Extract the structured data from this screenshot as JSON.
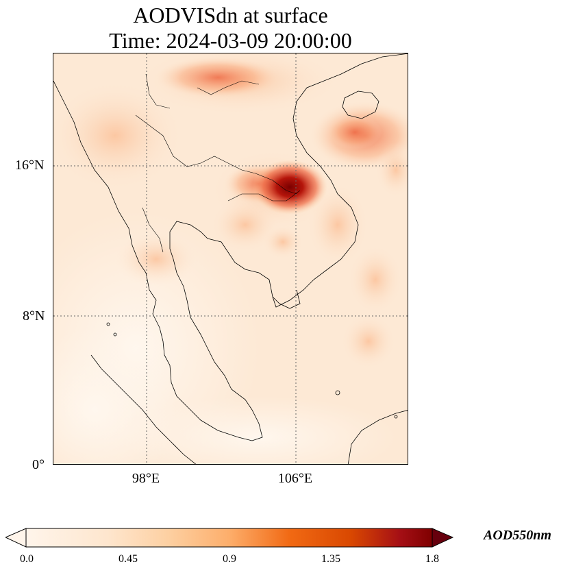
{
  "title": {
    "line1": "AODVISdn at surface",
    "line2": "Time: 2024-03-09 20:00:00"
  },
  "map": {
    "lat_labels": [
      "16°N",
      "8°N",
      "0°"
    ],
    "lon_labels": [
      "98°E",
      "106°E"
    ],
    "gridlines": "dotted",
    "hotspot_color": "#8b0000",
    "background_color": "#fde9d5"
  },
  "colorbar": {
    "label": "AOD550nm",
    "ticks": [
      "0.0",
      "0.45",
      "0.9",
      "1.35",
      "1.8"
    ],
    "colormap": [
      "#fff5eb",
      "#fdd0a2",
      "#fd8d3c",
      "#d94801",
      "#a50f15",
      "#67000d"
    ],
    "extend": "both"
  }
}
